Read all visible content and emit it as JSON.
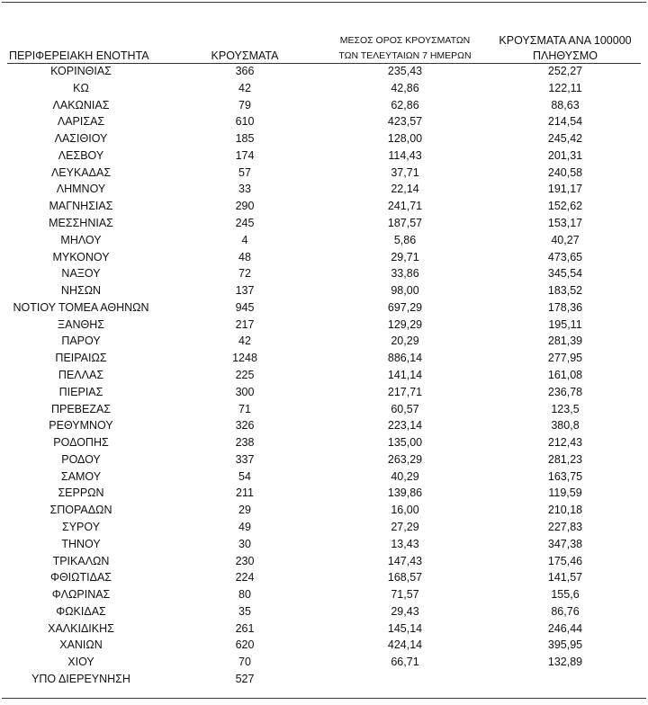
{
  "table": {
    "headers": [
      [
        "ΠΕΡΙΦΕΡΕΙΑΚΗ ΕΝΟΤΗΤΑ"
      ],
      [
        "ΚΡΟΥΣΜΑΤΑ"
      ],
      [
        "ΜΕΣΟΣ ΟΡΟΣ ΚΡΟΥΣΜΑΤΩΝ",
        "ΤΩΝ ΤΕΛΕΥΤΑΙΩΝ 7 ΗΜΕΡΩΝ"
      ],
      [
        "ΚΡΟΥΣΜΑΤΑ ΑΝΑ 100000",
        "ΠΛΗΘΥΣΜΟ"
      ]
    ],
    "rows": [
      [
        "ΚΟΡΙΝΘΙΑΣ",
        "366",
        "235,43",
        "252,27"
      ],
      [
        "ΚΩ",
        "42",
        "42,86",
        "122,11"
      ],
      [
        "ΛΑΚΩΝΙΑΣ",
        "79",
        "62,86",
        "88,63"
      ],
      [
        "ΛΑΡΙΣΑΣ",
        "610",
        "423,57",
        "214,54"
      ],
      [
        "ΛΑΣΙΘΙΟΥ",
        "185",
        "128,00",
        "245,42"
      ],
      [
        "ΛΕΣΒΟΥ",
        "174",
        "114,43",
        "201,31"
      ],
      [
        "ΛΕΥΚΑΔΑΣ",
        "57",
        "37,71",
        "240,58"
      ],
      [
        "ΛΗΜΝΟΥ",
        "33",
        "22,14",
        "191,17"
      ],
      [
        "ΜΑΓΝΗΣΙΑΣ",
        "290",
        "241,71",
        "152,62"
      ],
      [
        "ΜΕΣΣΗΝΙΑΣ",
        "245",
        "187,57",
        "153,17"
      ],
      [
        "ΜΗΛΟΥ",
        "4",
        "5,86",
        "40,27"
      ],
      [
        "ΜΥΚΟΝΟΥ",
        "48",
        "29,71",
        "473,65"
      ],
      [
        "ΝΑΞΟΥ",
        "72",
        "33,86",
        "345,54"
      ],
      [
        "ΝΗΣΩΝ",
        "137",
        "98,00",
        "183,52"
      ],
      [
        "ΝΟΤΙΟΥ ΤΟΜΕΑ ΑΘΗΝΩΝ",
        "945",
        "697,29",
        "178,36"
      ],
      [
        "ΞΑΝΘΗΣ",
        "217",
        "129,29",
        "195,11"
      ],
      [
        "ΠΑΡΟΥ",
        "42",
        "20,29",
        "281,39"
      ],
      [
        "ΠΕΙΡΑΙΩΣ",
        "1248",
        "886,14",
        "277,95"
      ],
      [
        "ΠΕΛΛΑΣ",
        "225",
        "141,14",
        "161,08"
      ],
      [
        "ΠΙΕΡΙΑΣ",
        "300",
        "217,71",
        "236,78"
      ],
      [
        "ΠΡΕΒΕΖΑΣ",
        "71",
        "60,57",
        "123,5"
      ],
      [
        "ΡΕΘΥΜΝΟΥ",
        "326",
        "223,14",
        "380,8"
      ],
      [
        "ΡΟΔΟΠΗΣ",
        "238",
        "135,00",
        "212,43"
      ],
      [
        "ΡΟΔΟΥ",
        "337",
        "263,29",
        "281,23"
      ],
      [
        "ΣΑΜΟΥ",
        "54",
        "40,29",
        "163,75"
      ],
      [
        "ΣΕΡΡΩΝ",
        "211",
        "139,86",
        "119,59"
      ],
      [
        "ΣΠΟΡΑΔΩΝ",
        "29",
        "16,00",
        "210,18"
      ],
      [
        "ΣΥΡΟΥ",
        "49",
        "27,29",
        "227,83"
      ],
      [
        "ΤΗΝΟΥ",
        "30",
        "13,43",
        "347,38"
      ],
      [
        "ΤΡΙΚΑΛΩΝ",
        "230",
        "147,43",
        "175,46"
      ],
      [
        "ΦΘΙΩΤΙΔΑΣ",
        "224",
        "168,57",
        "141,57"
      ],
      [
        "ΦΛΩΡΙΝΑΣ",
        "80",
        "71,57",
        "155,6"
      ],
      [
        "ΦΩΚΙΔΑΣ",
        "35",
        "29,43",
        "86,76"
      ],
      [
        "ΧΑΛΚΙΔΙΚΗΣ",
        "261",
        "145,14",
        "246,44"
      ],
      [
        "ΧΑΝΙΩΝ",
        "620",
        "424,14",
        "395,95"
      ],
      [
        "ΧΙΟΥ",
        "70",
        "66,71",
        "132,89"
      ],
      [
        "ΥΠΟ ΔΙΕΡΕΥΝΗΣΗ",
        "527"
      ]
    ]
  }
}
